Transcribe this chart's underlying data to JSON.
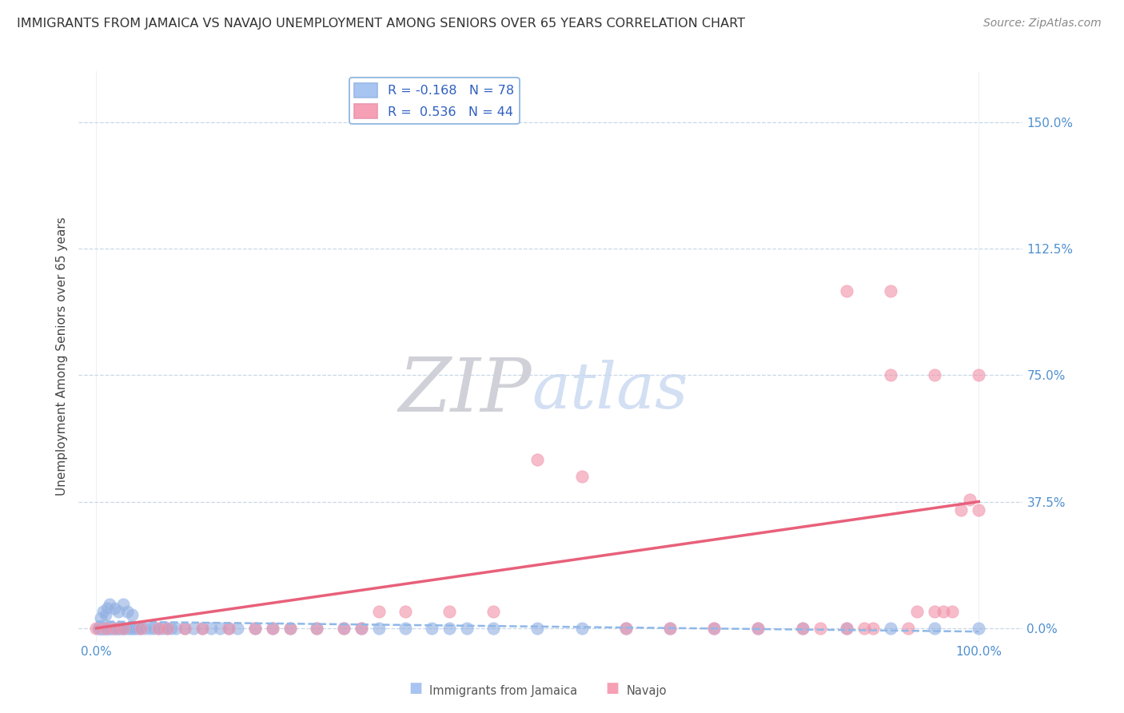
{
  "title": "IMMIGRANTS FROM JAMAICA VS NAVAJO UNEMPLOYMENT AMONG SENIORS OVER 65 YEARS CORRELATION CHART",
  "source": "Source: ZipAtlas.com",
  "ylabel": "Unemployment Among Seniors over 65 years",
  "ytick_labels": [
    "0.0%",
    "37.5%",
    "75.0%",
    "112.5%",
    "150.0%"
  ],
  "ytick_values": [
    0.0,
    0.375,
    0.75,
    1.125,
    1.5
  ],
  "xlim": [
    -0.02,
    1.05
  ],
  "ylim": [
    -0.04,
    1.65
  ],
  "legend_label1": "R = -0.168   N = 78",
  "legend_label2": "R =  0.536   N = 44",
  "blue_color": "#a8c4f0",
  "pink_color": "#f5a0b5",
  "blue_scatter_color": "#90aee0",
  "pink_scatter_color": "#f090a8",
  "blue_line_color": "#90b8e8",
  "pink_line_color": "#e8607a",
  "blue_scatter_x": [
    0.002,
    0.003,
    0.004,
    0.005,
    0.006,
    0.007,
    0.008,
    0.009,
    0.01,
    0.011,
    0.012,
    0.013,
    0.015,
    0.016,
    0.018,
    0.02,
    0.022,
    0.024,
    0.025,
    0.026,
    0.028,
    0.03,
    0.032,
    0.035,
    0.038,
    0.04,
    0.042,
    0.045,
    0.048,
    0.05,
    0.055,
    0.06,
    0.065,
    0.07,
    0.075,
    0.08,
    0.085,
    0.09,
    0.1,
    0.11,
    0.12,
    0.13,
    0.14,
    0.15,
    0.16,
    0.18,
    0.2,
    0.22,
    0.25,
    0.28,
    0.3,
    0.32,
    0.35,
    0.38,
    0.4,
    0.42,
    0.45,
    0.5,
    0.55,
    0.6,
    0.65,
    0.7,
    0.75,
    0.8,
    0.85,
    0.9,
    0.95,
    1.0,
    0.005,
    0.008,
    0.01,
    0.012,
    0.015,
    0.02,
    0.025,
    0.03,
    0.035,
    0.04
  ],
  "blue_scatter_y": [
    0.0,
    0.0,
    0.0,
    0.0,
    0.0,
    0.0,
    0.0,
    0.0,
    0.0,
    0.0,
    0.0,
    0.0,
    0.0,
    0.0,
    0.0,
    0.0,
    0.0,
    0.0,
    0.0,
    0.0,
    0.0,
    0.0,
    0.0,
    0.0,
    0.0,
    0.0,
    0.0,
    0.0,
    0.0,
    0.0,
    0.0,
    0.0,
    0.0,
    0.0,
    0.0,
    0.0,
    0.0,
    0.0,
    0.0,
    0.0,
    0.0,
    0.0,
    0.0,
    0.0,
    0.0,
    0.0,
    0.0,
    0.0,
    0.0,
    0.0,
    0.0,
    0.0,
    0.0,
    0.0,
    0.0,
    0.0,
    0.0,
    0.0,
    0.0,
    0.0,
    0.0,
    0.0,
    0.0,
    0.0,
    0.0,
    0.0,
    0.0,
    0.0,
    0.03,
    0.05,
    0.04,
    0.06,
    0.07,
    0.06,
    0.05,
    0.07,
    0.05,
    0.04
  ],
  "pink_scatter_x": [
    0.0,
    0.01,
    0.02,
    0.03,
    0.05,
    0.07,
    0.08,
    0.1,
    0.12,
    0.15,
    0.18,
    0.2,
    0.22,
    0.25,
    0.28,
    0.3,
    0.32,
    0.35,
    0.4,
    0.45,
    0.5,
    0.55,
    0.6,
    0.65,
    0.7,
    0.75,
    0.8,
    0.82,
    0.85,
    0.87,
    0.88,
    0.9,
    0.92,
    0.93,
    0.95,
    0.96,
    0.97,
    0.98,
    0.99,
    1.0,
    0.85,
    0.9,
    0.95,
    1.0
  ],
  "pink_scatter_y": [
    0.0,
    0.0,
    0.0,
    0.0,
    0.0,
    0.0,
    0.0,
    0.0,
    0.0,
    0.0,
    0.0,
    0.0,
    0.0,
    0.0,
    0.0,
    0.0,
    0.05,
    0.05,
    0.05,
    0.05,
    0.5,
    0.45,
    0.0,
    0.0,
    0.0,
    0.0,
    0.0,
    0.0,
    0.0,
    0.0,
    0.0,
    0.75,
    0.0,
    0.05,
    0.05,
    0.05,
    0.05,
    0.35,
    0.38,
    0.35,
    1.0,
    1.0,
    0.75,
    0.75
  ],
  "blue_trend_x": [
    0.0,
    1.0
  ],
  "blue_trend_y": [
    0.02,
    -0.01
  ],
  "pink_trend_x": [
    0.0,
    1.0
  ],
  "pink_trend_y": [
    0.0,
    0.375
  ]
}
